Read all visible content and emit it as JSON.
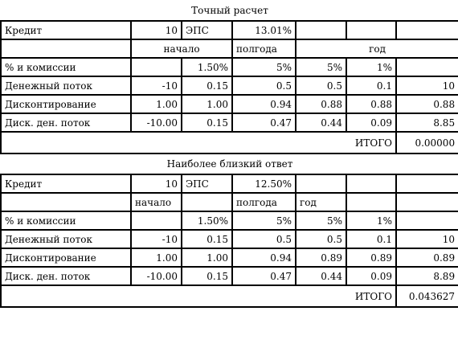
{
  "sections": [
    {
      "title": "Точный расчет",
      "credit": {
        "label": "Кредит",
        "value": "10",
        "eps_label": "ЭПС",
        "eps_value": "13.01%"
      },
      "periods": {
        "start": "начало",
        "half_year": "полгода",
        "year": "год"
      },
      "fees": {
        "label": "% и комиссии",
        "values": [
          "1.50%",
          "5%",
          "5%",
          "1%"
        ]
      },
      "cash_flow": {
        "label": "Денежный поток",
        "values": [
          "-10",
          "0.15",
          "0.5",
          "0.5",
          "0.1",
          "10"
        ]
      },
      "discount": {
        "label": "Дисконтирование",
        "values": [
          "1.00",
          "1.00",
          "0.94",
          "0.88",
          "0.88",
          "0.88"
        ]
      },
      "discounted_cash_flow": {
        "label": "Диск. ден. поток",
        "values": [
          "-10.00",
          "0.15",
          "0.47",
          "0.44",
          "0.09",
          "8.85"
        ]
      },
      "total": {
        "label": "ИТОГО",
        "value": "0.00000"
      }
    },
    {
      "title": "Наиболее близкий ответ",
      "credit": {
        "label": "Кредит",
        "value": "10",
        "eps_label": "ЭПС",
        "eps_value": "12.50%"
      },
      "periods": {
        "start": "начало",
        "half_year": "полгода",
        "year": "год"
      },
      "fees": {
        "label": "% и комиссии",
        "values": [
          "1.50%",
          "5%",
          "5%",
          "1%"
        ]
      },
      "cash_flow": {
        "label": "Денежный поток",
        "values": [
          "-10",
          "0.15",
          "0.5",
          "0.5",
          "0.1",
          "10"
        ]
      },
      "discount": {
        "label": "Дисконтирование",
        "values": [
          "1.00",
          "1.00",
          "0.94",
          "0.89",
          "0.89",
          "0.89"
        ]
      },
      "discounted_cash_flow": {
        "label": "Диск. ден. поток",
        "values": [
          "-10.00",
          "0.15",
          "0.47",
          "0.44",
          "0.09",
          "8.89"
        ]
      },
      "total": {
        "label": "ИТОГО",
        "value": "0.043627"
      }
    }
  ]
}
